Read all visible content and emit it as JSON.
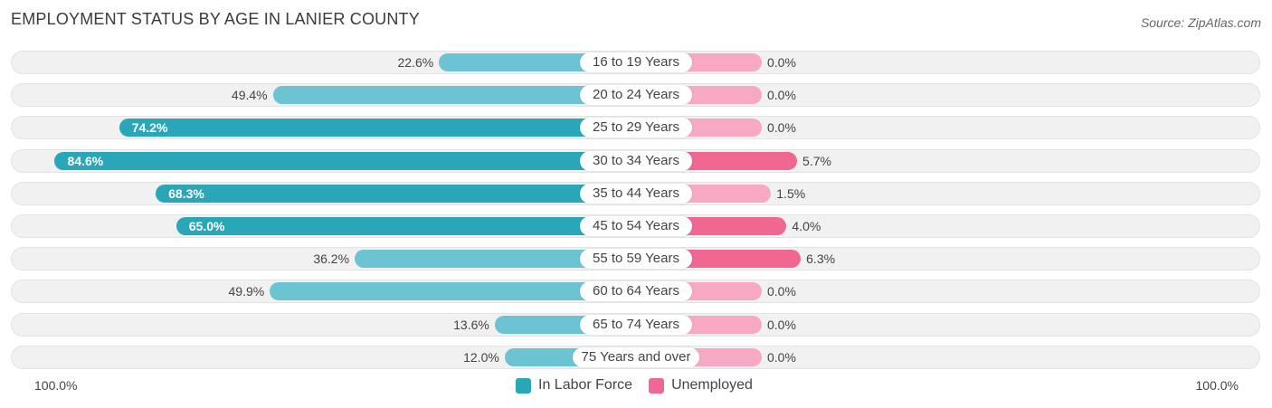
{
  "header": {
    "title": "EMPLOYMENT STATUS BY AGE IN LANIER COUNTY",
    "source": "Source: ZipAtlas.com"
  },
  "chart_data": {
    "type": "bar",
    "orientation": "horizontal-diverging",
    "title": "EMPLOYMENT STATUS BY AGE IN LANIER COUNTY",
    "categories": [
      "16 to 19 Years",
      "20 to 24 Years",
      "25 to 29 Years",
      "30 to 34 Years",
      "35 to 44 Years",
      "45 to 54 Years",
      "55 to 59 Years",
      "60 to 64 Years",
      "65 to 74 Years",
      "75 Years and over"
    ],
    "series": [
      {
        "name": "In Labor Force",
        "color": "#2aa6b9",
        "values": [
          22.6,
          49.4,
          74.2,
          84.6,
          68.3,
          65.0,
          36.2,
          49.9,
          13.6,
          12.0
        ],
        "labels": [
          "22.6%",
          "49.4%",
          "74.2%",
          "84.6%",
          "68.3%",
          "65.0%",
          "36.2%",
          "49.9%",
          "13.6%",
          "12.0%"
        ]
      },
      {
        "name": "Unemployed",
        "color": "#f06792",
        "values": [
          0.0,
          0.0,
          0.0,
          5.7,
          1.5,
          4.0,
          6.3,
          0.0,
          0.0,
          0.0
        ],
        "labels": [
          "0.0%",
          "0.0%",
          "0.0%",
          "5.7%",
          "1.5%",
          "4.0%",
          "6.3%",
          "0.0%",
          "0.0%",
          "0.0%"
        ]
      }
    ],
    "axis": {
      "left_label": "100.0%",
      "right_label": "100.0%",
      "range": [
        -100,
        100
      ]
    },
    "legend": {
      "position": "bottom-center"
    }
  }
}
